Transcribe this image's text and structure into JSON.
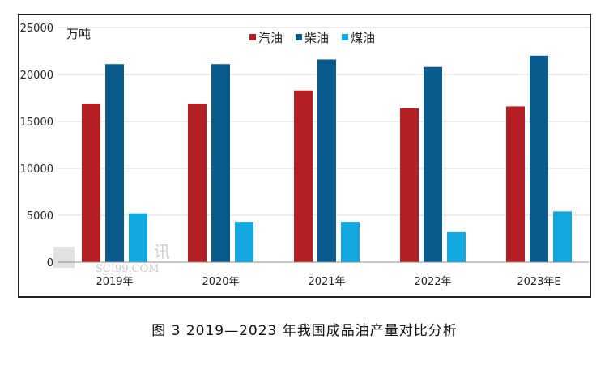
{
  "chart_data": {
    "type": "bar",
    "title": "",
    "xlabel": "",
    "ylabel": "万吨",
    "ylim": [
      0,
      25000
    ],
    "yticks": [
      0,
      5000,
      10000,
      15000,
      20000,
      25000
    ],
    "grid": true,
    "legend_position": "top",
    "categories": [
      "2019年",
      "2020年",
      "2021年",
      "2022年",
      "2023年E"
    ],
    "series": [
      {
        "name": "汽油",
        "color": "#b41f24",
        "values": [
          16900,
          16900,
          18300,
          16400,
          16600
        ]
      },
      {
        "name": "柴油",
        "color": "#0b5a8e",
        "values": [
          21100,
          21100,
          21600,
          20800,
          22000
        ]
      },
      {
        "name": "煤油",
        "color": "#12a7df",
        "values": [
          5200,
          4300,
          4300,
          3200,
          5400
        ]
      }
    ]
  },
  "watermark": {
    "line1": "讯",
    "line2": "SCI99.COM"
  },
  "caption": "图 3  2019—2023 年我国成品油产量对比分析"
}
